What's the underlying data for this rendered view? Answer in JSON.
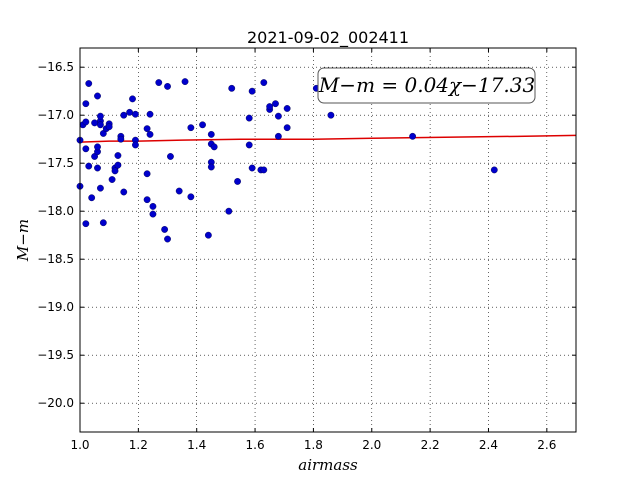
{
  "chart_data": {
    "type": "scatter",
    "title": "2021-09-02_002411",
    "xlabel": "airmass",
    "ylabel": "M−m",
    "xlim": [
      1.0,
      2.7
    ],
    "ylim": [
      -20.3,
      -16.3
    ],
    "y_inverted": true,
    "grid": true,
    "x_ticks": [
      1.0,
      1.2,
      1.4,
      1.6,
      1.8,
      2.0,
      2.2,
      2.4,
      2.6
    ],
    "x_tick_labels": [
      "1.0",
      "1.2",
      "1.4",
      "1.6",
      "1.8",
      "2.0",
      "2.2",
      "2.4",
      "2.6"
    ],
    "y_ticks": [
      -16.5,
      -17.0,
      -17.5,
      -18.0,
      -18.5,
      -19.0,
      -19.5,
      -20.0
    ],
    "y_tick_labels": [
      "−16.5",
      "−17.0",
      "−17.5",
      "−18.0",
      "−18.5",
      "−19.0",
      "−19.5",
      "−20.0"
    ],
    "annotation": "M−m = 0.04χ−17.33",
    "point_color": "#0000cc",
    "fit_color": "#dd0000",
    "points": [
      [
        1.0,
        -17.26
      ],
      [
        1.0,
        -17.74
      ],
      [
        1.01,
        -17.1
      ],
      [
        1.02,
        -17.07
      ],
      [
        1.02,
        -17.35
      ],
      [
        1.02,
        -16.88
      ],
      [
        1.02,
        -18.13
      ],
      [
        1.03,
        -17.53
      ],
      [
        1.03,
        -16.67
      ],
      [
        1.04,
        -17.86
      ],
      [
        1.05,
        -17.43
      ],
      [
        1.05,
        -17.08
      ],
      [
        1.06,
        -17.38
      ],
      [
        1.06,
        -17.55
      ],
      [
        1.06,
        -17.33
      ],
      [
        1.06,
        -16.8
      ],
      [
        1.07,
        -17.06
      ],
      [
        1.07,
        -17.01
      ],
      [
        1.07,
        -17.1
      ],
      [
        1.07,
        -17.76
      ],
      [
        1.08,
        -17.19
      ],
      [
        1.08,
        -18.12
      ],
      [
        1.09,
        -17.14
      ],
      [
        1.1,
        -17.09
      ],
      [
        1.1,
        -17.12
      ],
      [
        1.11,
        -17.67
      ],
      [
        1.12,
        -17.55
      ],
      [
        1.12,
        -17.58
      ],
      [
        1.13,
        -17.52
      ],
      [
        1.13,
        -17.42
      ],
      [
        1.14,
        -17.22
      ],
      [
        1.14,
        -17.25
      ],
      [
        1.15,
        -17.0
      ],
      [
        1.15,
        -17.8
      ],
      [
        1.17,
        -16.97
      ],
      [
        1.18,
        -16.83
      ],
      [
        1.19,
        -16.99
      ],
      [
        1.19,
        -17.26
      ],
      [
        1.19,
        -17.31
      ],
      [
        1.23,
        -17.14
      ],
      [
        1.23,
        -17.61
      ],
      [
        1.23,
        -17.88
      ],
      [
        1.24,
        -16.99
      ],
      [
        1.24,
        -17.2
      ],
      [
        1.25,
        -17.95
      ],
      [
        1.25,
        -18.03
      ],
      [
        1.27,
        -16.66
      ],
      [
        1.29,
        -18.19
      ],
      [
        1.3,
        -18.29
      ],
      [
        1.3,
        -16.7
      ],
      [
        1.31,
        -17.43
      ],
      [
        1.34,
        -17.79
      ],
      [
        1.36,
        -16.65
      ],
      [
        1.38,
        -17.13
      ],
      [
        1.38,
        -17.85
      ],
      [
        1.42,
        -17.1
      ],
      [
        1.44,
        -18.25
      ],
      [
        1.45,
        -17.2
      ],
      [
        1.45,
        -17.3
      ],
      [
        1.45,
        -17.49
      ],
      [
        1.45,
        -17.54
      ],
      [
        1.46,
        -17.33
      ],
      [
        1.51,
        -18.0
      ],
      [
        1.52,
        -16.72
      ],
      [
        1.54,
        -17.69
      ],
      [
        1.58,
        -17.03
      ],
      [
        1.58,
        -17.31
      ],
      [
        1.59,
        -17.55
      ],
      [
        1.59,
        -16.75
      ],
      [
        1.62,
        -17.57
      ],
      [
        1.63,
        -17.57
      ],
      [
        1.63,
        -16.66
      ],
      [
        1.65,
        -16.94
      ],
      [
        1.65,
        -16.91
      ],
      [
        1.67,
        -16.88
      ],
      [
        1.68,
        -17.01
      ],
      [
        1.68,
        -17.22
      ],
      [
        1.71,
        -16.93
      ],
      [
        1.71,
        -17.13
      ],
      [
        1.81,
        -16.72
      ],
      [
        1.86,
        -17.0
      ],
      [
        2.14,
        -17.22
      ],
      [
        2.42,
        -17.57
      ]
    ],
    "fit_line": {
      "slope": 0.04,
      "intercept": -17.33,
      "x": [
        1.0,
        1.1,
        1.2,
        1.35,
        1.55,
        1.8,
        2.0,
        2.25,
        2.5,
        2.7
      ],
      "y": [
        -17.28,
        -17.27,
        -17.27,
        -17.26,
        -17.25,
        -17.25,
        -17.24,
        -17.23,
        -17.22,
        -17.21
      ]
    }
  }
}
